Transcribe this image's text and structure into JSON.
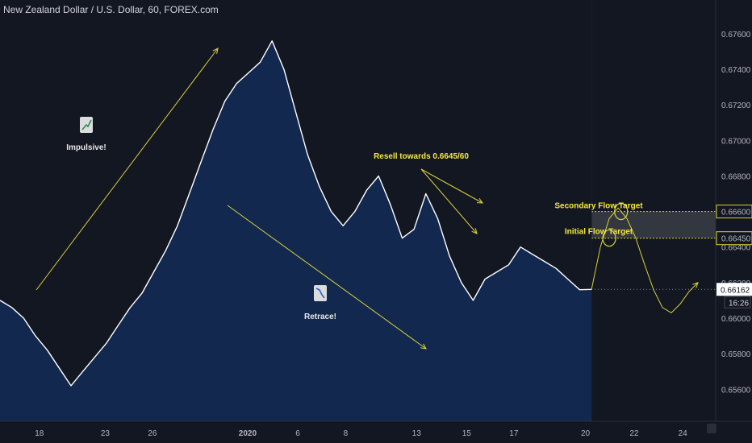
{
  "header": {
    "title": "New Zealand Dollar / U.S. Dollar, 60, FOREX.com"
  },
  "chart_data": {
    "type": "area",
    "title": "New Zealand Dollar / U.S. Dollar, 60, FOREX.com",
    "y_ticks": [
      "0.67600",
      "0.67400",
      "0.67200",
      "0.67000",
      "0.66800",
      "0.66600",
      "0.66450",
      "0.66400",
      "0.66200",
      "0.66000",
      "0.65800",
      "0.65600"
    ],
    "x_ticks": [
      "18",
      "23",
      "26",
      "2020",
      "6",
      "8",
      "13",
      "15",
      "17",
      "20",
      "22",
      "24"
    ],
    "ylim": [
      0.6542,
      0.6779
    ],
    "current_price": "0.66162",
    "countdown": "16:26",
    "series": [
      {
        "x": [
          0,
          2,
          4,
          6,
          8,
          10,
          12,
          14,
          16,
          18,
          20,
          22,
          24,
          26,
          28,
          30,
          32,
          34,
          36,
          38,
          40,
          42,
          44,
          46,
          48,
          50,
          52,
          54,
          56,
          58,
          60,
          62,
          64,
          66,
          68,
          70,
          72,
          74,
          76,
          78,
          80,
          82,
          84,
          86,
          88,
          90,
          92,
          94,
          96,
          98,
          100
        ],
        "values": [
          0.661,
          0.6606,
          0.66,
          0.659,
          0.6582,
          0.6572,
          0.6562,
          0.657,
          0.6578,
          0.6586,
          0.6596,
          0.6606,
          0.6614,
          0.6626,
          0.6638,
          0.6652,
          0.667,
          0.6688,
          0.6706,
          0.6722,
          0.6732,
          0.6738,
          0.6744,
          0.6756,
          0.674,
          0.6716,
          0.6692,
          0.6674,
          0.666,
          0.6652,
          0.666,
          0.6672,
          0.668,
          0.6664,
          0.6645,
          0.665,
          0.667,
          0.6656,
          0.6635,
          0.662,
          0.661,
          0.6622,
          0.6626,
          0.663,
          0.664,
          0.6636,
          0.6632,
          0.6628,
          0.6622,
          0.6616,
          0.66162
        ]
      }
    ],
    "zone": {
      "top": 0.666,
      "bottom": 0.6645
    },
    "projection": {
      "x": [
        100,
        101.5,
        103,
        104.5,
        106,
        107.5,
        109,
        110.5,
        112,
        113.5,
        115,
        116.5,
        118
      ],
      "values": [
        0.66162,
        0.664,
        0.6656,
        0.6662,
        0.6656,
        0.6645,
        0.663,
        0.6616,
        0.6606,
        0.6603,
        0.6608,
        0.6615,
        0.662
      ]
    }
  },
  "annotations": {
    "impulsive": "Impulsive!",
    "retrace": "Retrace!",
    "resell": "Resell towards 0.6645/60",
    "secondary_target": "Secondary Flow Target",
    "initial_target": "Initial Flow Target"
  },
  "colors": {
    "background": "#131722",
    "area_fill": "#13284f",
    "price_line": "#ffffff",
    "annotation": "#d8d23a",
    "zone": "#3a3d44",
    "axis_text": "#b2b5be"
  }
}
